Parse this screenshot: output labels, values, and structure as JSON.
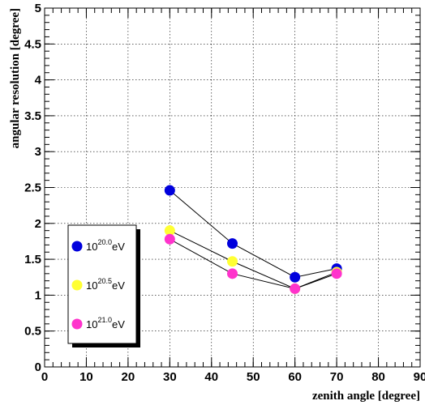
{
  "chart_data": {
    "type": "scatter",
    "xlabel": "zenith angle [degree]",
    "ylabel": "angular resolution [degree]",
    "xlim": [
      0,
      90
    ],
    "ylim": [
      0,
      5
    ],
    "x_ticks": [
      "0",
      "10",
      "20",
      "30",
      "40",
      "50",
      "60",
      "70",
      "80",
      "90"
    ],
    "y_ticks": [
      "0",
      "0.5",
      "1",
      "1.5",
      "2",
      "2.5",
      "3",
      "3.5",
      "4",
      "4.5",
      "5"
    ],
    "grid": true,
    "legend_position": "bottom-left",
    "lines_connected": true,
    "series": [
      {
        "label_base": "10",
        "label_exp": "20.0",
        "label_unit": "eV",
        "color": "#0000dd",
        "x": [
          30,
          45,
          60,
          70
        ],
        "y": [
          2.46,
          1.72,
          1.25,
          1.37
        ]
      },
      {
        "label_base": "10",
        "label_exp": "20.5",
        "label_unit": "eV",
        "color": "#ffff33",
        "x": [
          30,
          45,
          60,
          70
        ],
        "y": [
          1.9,
          1.47,
          1.09,
          1.32
        ]
      },
      {
        "label_base": "10",
        "label_exp": "21.0",
        "label_unit": "eV",
        "color": "#ff33cc",
        "x": [
          30,
          45,
          60,
          70
        ],
        "y": [
          1.78,
          1.3,
          1.09,
          1.3
        ]
      }
    ]
  }
}
